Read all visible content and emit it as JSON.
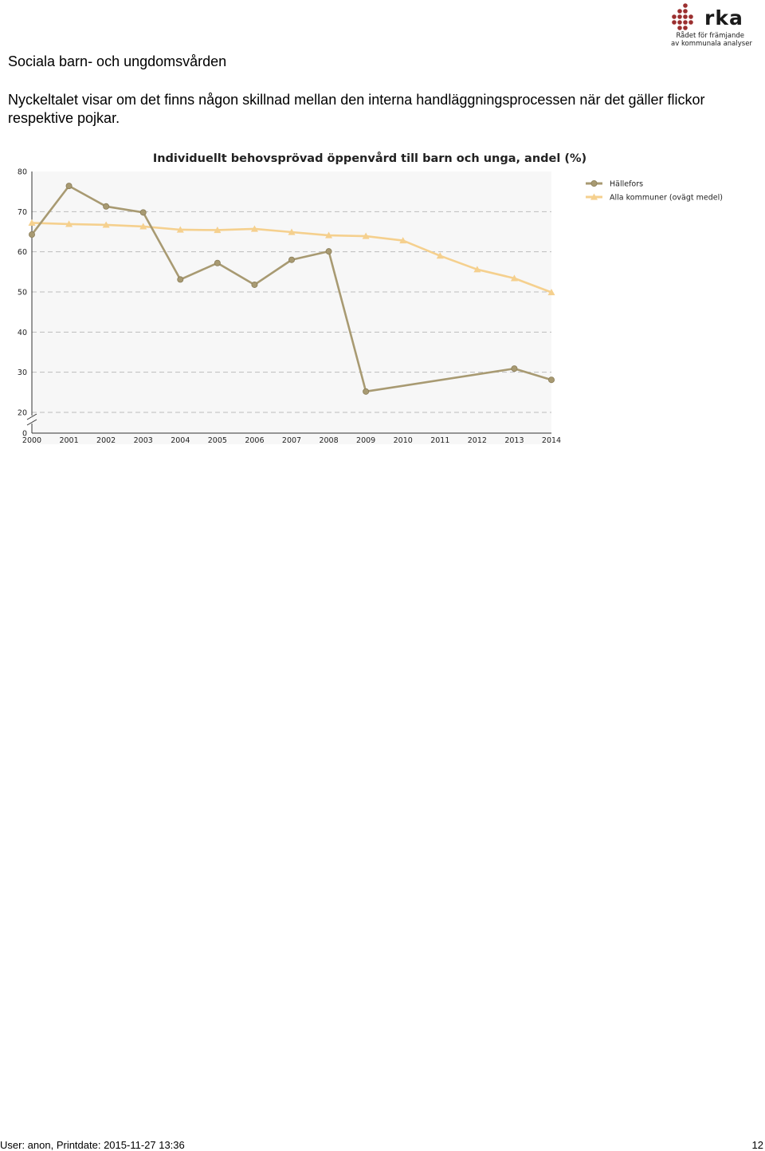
{
  "logo": {
    "word": "rka",
    "tagline_1": "Rådet för främjande",
    "tagline_2": "av kommunala analyser",
    "dot_color": "#9b2f2f"
  },
  "page_title": "Sociala barn- och ungdomsvården",
  "intro": "Nyckeltalet visar om det finns någon skillnad mellan den interna handläggningsprocessen när det gäller flickor respektive pojkar.",
  "chart_data": {
    "type": "line",
    "title": "Individuellt behovsprövad öppenvård till barn och unga, andel (%)",
    "xlabel": "",
    "ylabel": "",
    "x": [
      "2000",
      "2001",
      "2002",
      "2003",
      "2004",
      "2005",
      "2006",
      "2007",
      "2008",
      "2009",
      "2010",
      "2011",
      "2012",
      "2013",
      "2014"
    ],
    "y_ticks": [
      "0",
      "20",
      "30",
      "40",
      "50",
      "60",
      "70",
      "80"
    ],
    "y_axis_break": true,
    "ylim": [
      20,
      80
    ],
    "grid": true,
    "legend_position": "top-right",
    "series": [
      {
        "name": "Hällefors",
        "color": "#a89a72",
        "marker": "circle",
        "values": [
          64.3,
          76.4,
          71.3,
          69.8,
          53.1,
          57.2,
          51.8,
          58.0,
          60.1,
          25.2,
          null,
          null,
          null,
          30.9,
          28.1
        ]
      },
      {
        "name": "Alla kommuner (ovägt medel)",
        "color": "#f5d08e",
        "marker": "triangle",
        "values": [
          67.2,
          66.9,
          66.7,
          66.3,
          65.5,
          65.4,
          65.7,
          64.9,
          64.1,
          63.9,
          62.8,
          59.0,
          55.6,
          53.4,
          49.9
        ]
      }
    ]
  },
  "footer": {
    "user_print": "User: anon, Printdate: 2015-11-27 13:36",
    "page_number": "12"
  }
}
